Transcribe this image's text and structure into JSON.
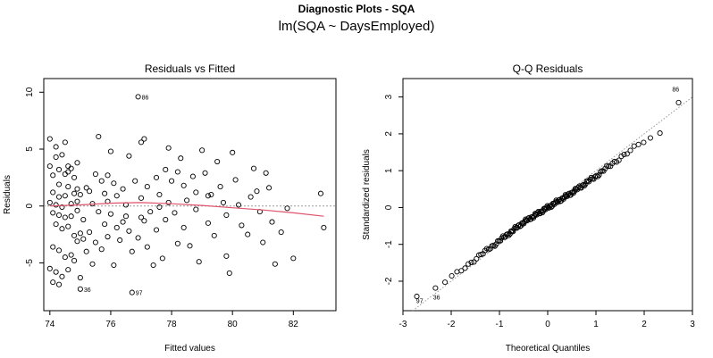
{
  "page": {
    "title": "Diagnostic Plots - SQA",
    "subtitle": "lm(SQA ~ DaysEmployed)"
  },
  "colors": {
    "points": "#000000",
    "smoother": "#DF536B",
    "reference": "#999999",
    "frame": "#000000"
  },
  "chart_data": [
    {
      "type": "scatter",
      "title": "Residuals vs Fitted",
      "xlabel": "Fitted values",
      "ylabel": "Residuals",
      "xlim": [
        73.8,
        83.4
      ],
      "ylim": [
        -9.2,
        11.2
      ],
      "xticks": [
        74,
        76,
        78,
        80,
        82
      ],
      "yticks": [
        -5,
        0,
        5,
        10
      ],
      "reference_line_y": 0,
      "grid": false,
      "point_labels": [
        {
          "text": "86",
          "x": 76.9,
          "y": 9.6
        },
        {
          "text": "36",
          "x": 75.0,
          "y": -7.3
        },
        {
          "text": "97",
          "x": 76.7,
          "y": -7.6
        }
      ],
      "smoother": {
        "name": "",
        "x": [
          74.0,
          75.0,
          76.0,
          77.0,
          78.0,
          79.0,
          80.0,
          81.0,
          82.0,
          83.0
        ],
        "y": [
          0.0,
          0.1,
          0.25,
          0.3,
          0.2,
          0.05,
          -0.15,
          -0.35,
          -0.6,
          -0.9
        ]
      },
      "points": [
        [
          74.0,
          5.9
        ],
        [
          74.2,
          5.2
        ],
        [
          74.5,
          5.6
        ],
        [
          74.4,
          4.5
        ],
        [
          74.2,
          4.3
        ],
        [
          74.0,
          3.5
        ],
        [
          74.3,
          3.2
        ],
        [
          74.6,
          3.5
        ],
        [
          74.7,
          3.3
        ],
        [
          74.9,
          3.8
        ],
        [
          74.1,
          2.7
        ],
        [
          74.5,
          2.8
        ],
        [
          74.8,
          2.5
        ],
        [
          74.3,
          1.9
        ],
        [
          74.6,
          1.7
        ],
        [
          74.9,
          1.5
        ],
        [
          74.1,
          1.2
        ],
        [
          74.3,
          0.8
        ],
        [
          74.5,
          0.9
        ],
        [
          74.8,
          1.1
        ],
        [
          74.0,
          0.3
        ],
        [
          74.2,
          0.1
        ],
        [
          74.4,
          -0.1
        ],
        [
          74.7,
          0.2
        ],
        [
          74.9,
          0.4
        ],
        [
          74.1,
          -0.6
        ],
        [
          74.3,
          -0.8
        ],
        [
          74.5,
          -1.0
        ],
        [
          74.7,
          -0.9
        ],
        [
          74.9,
          -0.4
        ],
        [
          74.2,
          -1.6
        ],
        [
          74.4,
          -2.0
        ],
        [
          74.6,
          -1.8
        ],
        [
          74.8,
          -2.6
        ],
        [
          75.0,
          -2.4
        ],
        [
          74.1,
          -3.6
        ],
        [
          74.3,
          -3.9
        ],
        [
          74.5,
          -4.5
        ],
        [
          74.7,
          -4.3
        ],
        [
          74.9,
          -3.1
        ],
        [
          74.0,
          -5.5
        ],
        [
          74.2,
          -5.8
        ],
        [
          74.4,
          -6.2
        ],
        [
          74.6,
          -5.6
        ],
        [
          74.8,
          -4.8
        ],
        [
          75.0,
          -6.3
        ],
        [
          75.0,
          -7.3
        ],
        [
          74.1,
          -6.7
        ],
        [
          74.3,
          -6.9
        ],
        [
          75.1,
          -2.9
        ],
        [
          75.2,
          1.6
        ],
        [
          75.3,
          1.3
        ],
        [
          75.4,
          0.2
        ],
        [
          75.1,
          -1.2
        ],
        [
          75.3,
          -2.3
        ],
        [
          75.5,
          -3.2
        ],
        [
          75.2,
          -4.0
        ],
        [
          75.4,
          -5.1
        ],
        [
          75.6,
          6.1
        ],
        [
          75.5,
          2.8
        ],
        [
          75.7,
          2.2
        ],
        [
          75.8,
          1.1
        ],
        [
          75.9,
          0.4
        ],
        [
          75.6,
          -0.5
        ],
        [
          75.8,
          -1.6
        ],
        [
          75.9,
          -2.7
        ],
        [
          75.7,
          -3.8
        ],
        [
          76.0,
          4.8
        ],
        [
          76.1,
          2.0
        ],
        [
          76.2,
          0.9
        ],
        [
          76.0,
          -0.7
        ],
        [
          76.2,
          -1.9
        ],
        [
          76.1,
          -5.2
        ],
        [
          76.3,
          -3.0
        ],
        [
          76.4,
          1.5
        ],
        [
          76.5,
          0.1
        ],
        [
          76.6,
          4.4
        ],
        [
          76.5,
          -0.9
        ],
        [
          76.6,
          -2.2
        ],
        [
          76.7,
          -4.0
        ],
        [
          76.8,
          2.2
        ],
        [
          76.9,
          9.6
        ],
        [
          76.7,
          -7.6
        ],
        [
          76.9,
          -2.8
        ],
        [
          77.0,
          -1.0
        ],
        [
          77.0,
          5.6
        ],
        [
          77.1,
          5.9
        ],
        [
          77.0,
          0.7
        ],
        [
          77.2,
          1.7
        ],
        [
          77.3,
          -0.5
        ],
        [
          77.1,
          -1.3
        ],
        [
          77.2,
          -3.6
        ],
        [
          77.4,
          -5.2
        ],
        [
          77.5,
          2.5
        ],
        [
          77.6,
          1.0
        ],
        [
          77.5,
          -2.1
        ],
        [
          77.7,
          -4.6
        ],
        [
          77.8,
          3.2
        ],
        [
          77.9,
          0.3
        ],
        [
          77.8,
          -1.2
        ],
        [
          77.9,
          5.1
        ],
        [
          78.0,
          2.2
        ],
        [
          78.1,
          -0.6
        ],
        [
          78.2,
          -3.3
        ],
        [
          78.3,
          4.2
        ],
        [
          78.4,
          1.8
        ],
        [
          78.5,
          0.5
        ],
        [
          78.4,
          -1.9
        ],
        [
          78.6,
          -3.5
        ],
        [
          78.7,
          2.6
        ],
        [
          78.8,
          1.2
        ],
        [
          78.8,
          -0.3
        ],
        [
          78.9,
          -4.9
        ],
        [
          79.0,
          4.9
        ],
        [
          79.1,
          2.9
        ],
        [
          79.2,
          0.9
        ],
        [
          79.2,
          -1.5
        ],
        [
          79.4,
          -2.6
        ],
        [
          79.5,
          3.9
        ],
        [
          79.6,
          1.7
        ],
        [
          79.7,
          0.3
        ],
        [
          79.8,
          -0.8
        ],
        [
          79.8,
          -4.4
        ],
        [
          79.9,
          -5.9
        ],
        [
          80.0,
          4.7
        ],
        [
          80.1,
          2.3
        ],
        [
          80.2,
          0.1
        ],
        [
          80.3,
          -1.7
        ],
        [
          80.5,
          -2.5
        ],
        [
          80.7,
          3.3
        ],
        [
          80.8,
          1.3
        ],
        [
          80.9,
          -0.5
        ],
        [
          81.0,
          -3.2
        ],
        [
          81.1,
          2.9
        ],
        [
          81.2,
          1.6
        ],
        [
          81.3,
          -1.4
        ],
        [
          81.4,
          -5.1
        ],
        [
          81.6,
          -2.3
        ],
        [
          81.8,
          -0.2
        ],
        [
          82.0,
          -4.6
        ],
        [
          82.9,
          1.1
        ],
        [
          83.0,
          -1.9
        ],
        [
          74.6,
          3.0
        ],
        [
          75.0,
          1.0
        ],
        [
          76.4,
          -1.4
        ],
        [
          77.6,
          -0.1
        ],
        [
          79.3,
          1.0
        ],
        [
          80.6,
          0.8
        ],
        [
          78.2,
          3.0
        ],
        [
          75.9,
          2.7
        ]
      ]
    },
    {
      "type": "scatter",
      "title": "Q-Q Residuals",
      "xlabel": "Theoretical Quantiles",
      "ylabel": "Standardized residuals",
      "xlim": [
        -3.0,
        3.0
      ],
      "ylim": [
        -2.8,
        3.5
      ],
      "xticks": [
        -3,
        -2,
        -1,
        0,
        1,
        2,
        3
      ],
      "yticks": [
        -2,
        -1,
        0,
        1,
        2,
        3
      ],
      "reference_line": {
        "slope": 1,
        "intercept": 0
      },
      "grid": false,
      "n_points": 150,
      "point_labels": [
        {
          "text": "86",
          "x": 2.8,
          "y": 3.2
        },
        {
          "text": "97",
          "x": -2.8,
          "y": -2.55
        },
        {
          "text": "36",
          "x": -2.45,
          "y": -2.45
        }
      ],
      "shape": {
        "x": [
          -3.0,
          -2.5,
          -2.0,
          -1.5,
          -1.0,
          -0.5,
          0.0,
          0.5,
          1.0,
          1.5,
          2.0,
          2.5,
          2.8
        ],
        "y": [
          -2.6,
          -2.35,
          -1.9,
          -1.4,
          -0.9,
          -0.4,
          0.0,
          0.4,
          0.85,
          1.35,
          1.8,
          2.1,
          3.2
        ]
      }
    }
  ]
}
